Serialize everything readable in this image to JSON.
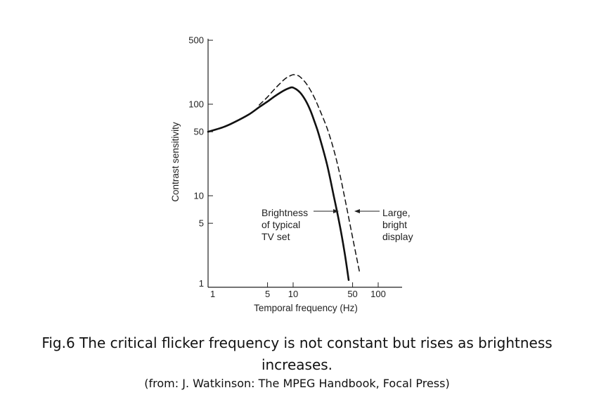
{
  "chart_data": {
    "type": "line",
    "title": "",
    "xlabel": "Temporal frequency (Hz)",
    "ylabel": "Contrast sensitivity",
    "x_scale": "log",
    "y_scale": "log",
    "xlim": [
      1,
      150
    ],
    "ylim": [
      1,
      500
    ],
    "x_ticks": [
      1,
      5,
      10,
      50,
      100
    ],
    "x_tick_labels": [
      "1",
      "5",
      "10",
      "50",
      "100"
    ],
    "y_ticks": [
      1,
      5,
      10,
      50,
      100,
      500
    ],
    "y_tick_labels": [
      "1",
      "5",
      "10",
      "50",
      "100",
      "500"
    ],
    "grid": false,
    "series": [
      {
        "style": "solid",
        "x": [
          1,
          1.5,
          2,
          3,
          4,
          5,
          6,
          7,
          8,
          9,
          10,
          12,
          14,
          16,
          18,
          20,
          25,
          30,
          35,
          40,
          45
        ],
        "y": [
          50,
          56,
          63,
          77,
          93,
          107,
          121,
          133,
          143,
          150,
          152,
          135,
          110,
          85,
          63,
          47,
          22,
          10,
          5,
          2.5,
          1.2
        ]
      },
      {
        "style": "dashed",
        "x": [
          4,
          5,
          6,
          7,
          8,
          9,
          10,
          11,
          12,
          14,
          16,
          18,
          20,
          25,
          30,
          35,
          40,
          50,
          60
        ],
        "y": [
          98,
          120,
          145,
          168,
          189,
          202,
          210,
          207,
          200,
          172,
          142,
          115,
          92,
          55,
          32,
          18,
          10,
          3.5,
          1.5
        ]
      }
    ],
    "annotations": [
      {
        "lines": [
          "Brightness",
          "of typical",
          "TV set"
        ],
        "points_to": "solid"
      },
      {
        "lines": [
          "Large,",
          "bright",
          "display"
        ],
        "points_to": "dashed"
      }
    ]
  },
  "caption": {
    "main": "Fig.6 The critical flicker frequency is not constant but rises as brightness increases.",
    "source": "(from: J. Watkinson: The MPEG Handbook, Focal Press)"
  }
}
